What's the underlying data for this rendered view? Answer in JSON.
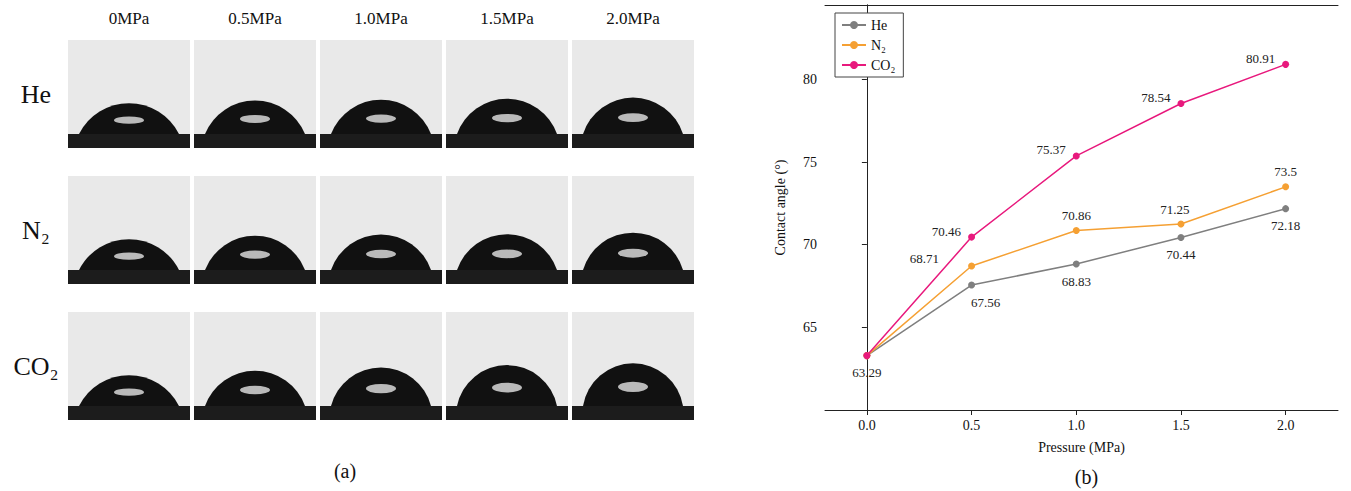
{
  "chart_data": {
    "type": "line",
    "title": "(b)",
    "x_label": "Pressure (MPa)",
    "y_label": "Contact angle (°)",
    "x": [
      0,
      0.5,
      1,
      1.5,
      2
    ],
    "xlim": [
      -0.2,
      2.25
    ],
    "xticks": [
      {
        "value": 0,
        "label": "0.0"
      },
      0.5,
      {
        "value": 1,
        "label": "1.0"
      },
      1.5,
      {
        "value": 2,
        "label": "2.0"
      }
    ],
    "ylim": [
      60,
      84.5
    ],
    "yticks": [
      65,
      70,
      75,
      80
    ],
    "grid": false,
    "legend": "upper left",
    "data_labels": true,
    "marker": "circle",
    "series": [
      {
        "name": "He",
        "color": "#7f7f7f",
        "values": [
          63.29,
          67.56,
          68.83,
          70.44,
          72.18
        ],
        "value_labels": [
          "63.29",
          "67.56",
          "68.83",
          "70.44",
          "72.18"
        ]
      },
      {
        "name": "N₂",
        "color": "#f5a033",
        "values": [
          63.29,
          68.71,
          70.86,
          71.25,
          73.5
        ],
        "value_labels": [
          null,
          "68.71",
          "70.86",
          "71.25",
          "73.5"
        ]
      },
      {
        "name": "CO₂",
        "color": "#e8197d",
        "values": [
          63.29,
          70.46,
          75.37,
          78.54,
          80.91
        ],
        "value_labels": [
          null,
          "70.46",
          "75.37",
          "78.54",
          "80.91"
        ]
      }
    ]
  },
  "image_panel": {
    "title": "(a)",
    "columns": [
      "0MPa",
      "0.5MPa",
      "1.0MPa",
      "1.5MPa",
      "2.0MPa"
    ],
    "rows": [
      "He",
      "N₂",
      "CO₂"
    ]
  }
}
